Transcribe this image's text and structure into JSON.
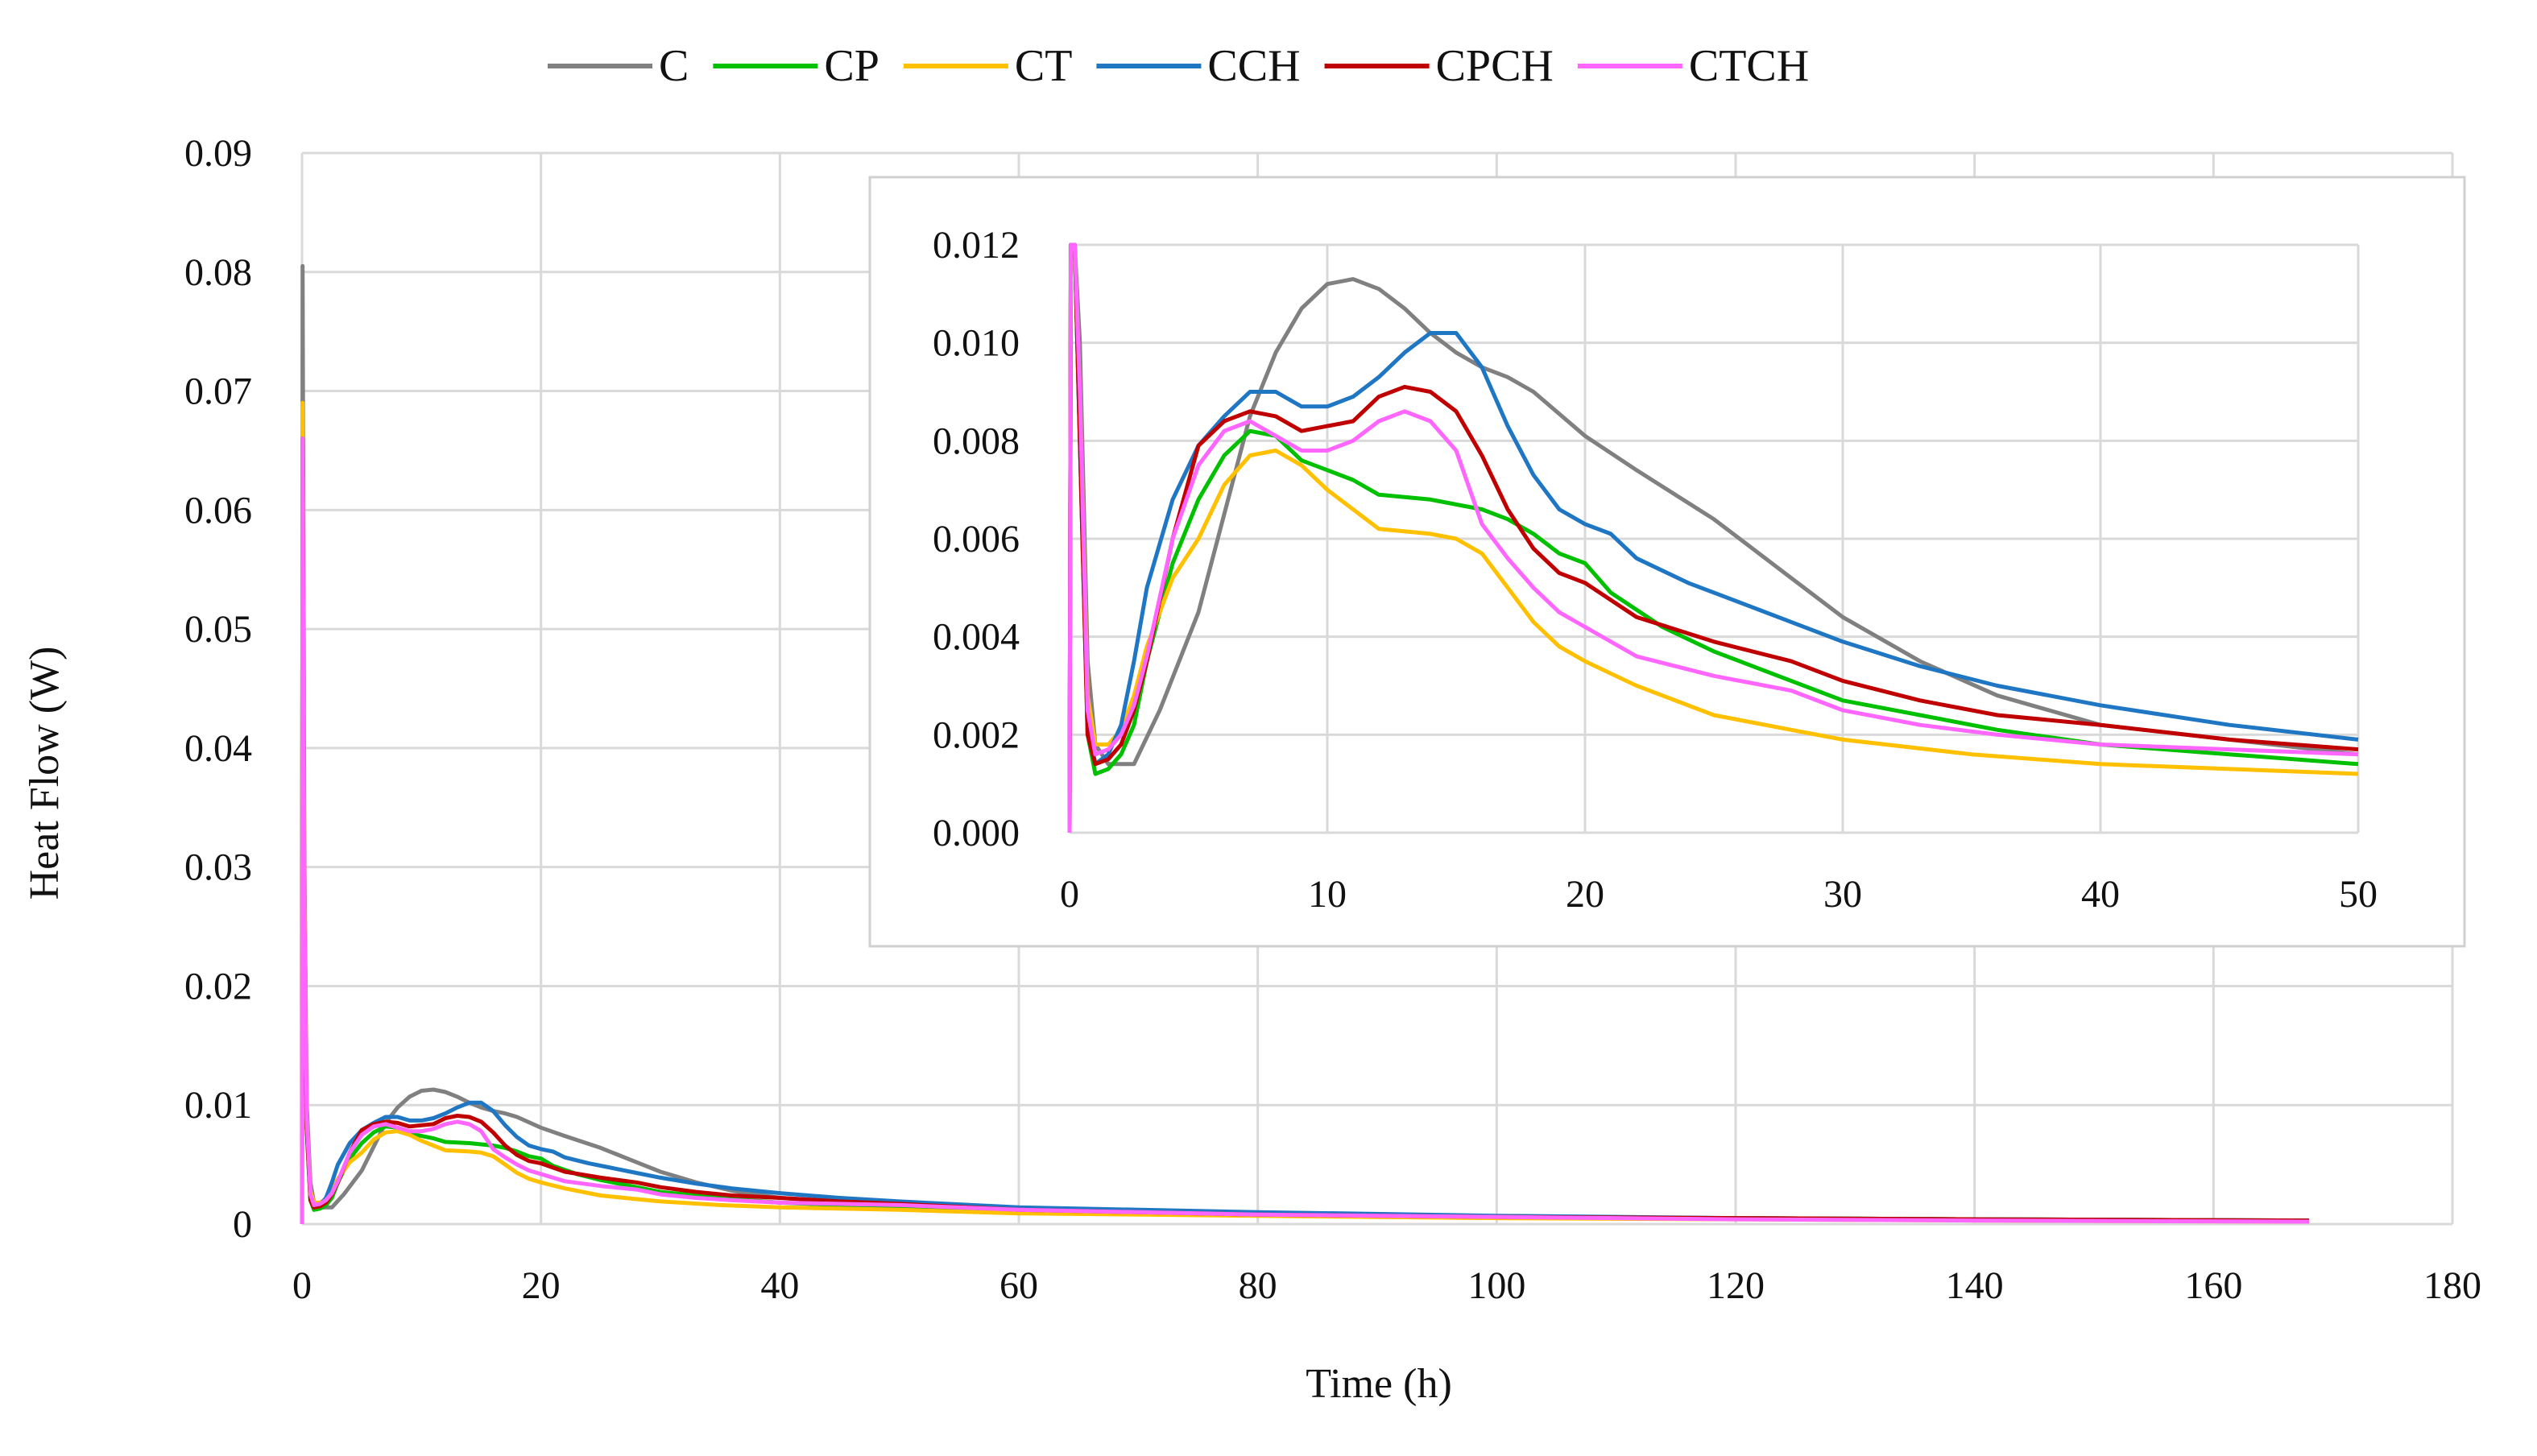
{
  "chart_data": {
    "type": "line",
    "xlabel": "Time (h)",
    "ylabel": "Heat Flow (W)",
    "legend_position": "top-center",
    "grid": true,
    "xlim": [
      0,
      180
    ],
    "ylim": [
      0,
      0.09
    ],
    "x_ticks": [
      0,
      20,
      40,
      60,
      80,
      100,
      120,
      140,
      160,
      180
    ],
    "y_ticks": [
      0,
      0.01,
      0.02,
      0.03,
      0.04,
      0.05,
      0.06,
      0.07,
      0.08,
      0.09
    ],
    "x_tick_labels": [
      "0",
      "20",
      "40",
      "60",
      "80",
      "100",
      "120",
      "140",
      "160",
      "180"
    ],
    "y_tick_labels": [
      "0",
      "0.01",
      "0.02",
      "0.03",
      "0.04",
      "0.05",
      "0.06",
      "0.07",
      "0.08",
      "0.09"
    ],
    "series": [
      {
        "name": "C",
        "color": "#808080",
        "points": [
          [
            0,
            0
          ],
          [
            0.05,
            0.0805
          ],
          [
            0.2,
            0.03
          ],
          [
            0.4,
            0.01
          ],
          [
            0.7,
            0.0035
          ],
          [
            1,
            0.0018
          ],
          [
            1.5,
            0.0014
          ],
          [
            2.5,
            0.0014
          ],
          [
            3.5,
            0.0025
          ],
          [
            5,
            0.0045
          ],
          [
            6,
            0.0065
          ],
          [
            7,
            0.0085
          ],
          [
            8,
            0.0098
          ],
          [
            9,
            0.0107
          ],
          [
            10,
            0.0112
          ],
          [
            11,
            0.0113
          ],
          [
            12,
            0.0111
          ],
          [
            13,
            0.0107
          ],
          [
            14,
            0.0102
          ],
          [
            15,
            0.0098
          ],
          [
            16,
            0.0095
          ],
          [
            17,
            0.0093
          ],
          [
            18,
            0.009
          ],
          [
            20,
            0.0081
          ],
          [
            22,
            0.0074
          ],
          [
            25,
            0.0064
          ],
          [
            28,
            0.0052
          ],
          [
            30,
            0.0044
          ],
          [
            33,
            0.0035
          ],
          [
            36,
            0.0028
          ],
          [
            40,
            0.0022
          ],
          [
            45,
            0.0019
          ],
          [
            50,
            0.0016
          ],
          [
            60,
            0.0013
          ],
          [
            70,
            0.001
          ],
          [
            80,
            0.0008
          ],
          [
            100,
            0.0006
          ],
          [
            120,
            0.0005
          ],
          [
            140,
            0.0004
          ],
          [
            168,
            0.0003
          ]
        ]
      },
      {
        "name": "CP",
        "color": "#00c000",
        "points": [
          [
            0,
            0
          ],
          [
            0.05,
            0.066
          ],
          [
            0.2,
            0.025
          ],
          [
            0.4,
            0.008
          ],
          [
            0.7,
            0.002
          ],
          [
            1,
            0.0012
          ],
          [
            1.5,
            0.0013
          ],
          [
            2,
            0.0016
          ],
          [
            2.5,
            0.0022
          ],
          [
            3,
            0.0035
          ],
          [
            4,
            0.0055
          ],
          [
            5,
            0.0068
          ],
          [
            6,
            0.0077
          ],
          [
            7,
            0.0082
          ],
          [
            8,
            0.0081
          ],
          [
            9,
            0.0076
          ],
          [
            10,
            0.0074
          ],
          [
            11,
            0.0072
          ],
          [
            12,
            0.0069
          ],
          [
            14,
            0.0068
          ],
          [
            16,
            0.0066
          ],
          [
            17,
            0.0064
          ],
          [
            18,
            0.0061
          ],
          [
            19,
            0.0057
          ],
          [
            20,
            0.0055
          ],
          [
            21,
            0.0049
          ],
          [
            23,
            0.0042
          ],
          [
            25,
            0.0037
          ],
          [
            27,
            0.0033
          ],
          [
            30,
            0.0027
          ],
          [
            33,
            0.0024
          ],
          [
            36,
            0.0021
          ],
          [
            40,
            0.0018
          ],
          [
            45,
            0.0016
          ],
          [
            50,
            0.0014
          ],
          [
            60,
            0.0011
          ],
          [
            80,
            0.0008
          ],
          [
            100,
            0.0006
          ],
          [
            120,
            0.0005
          ],
          [
            140,
            0.0004
          ],
          [
            168,
            0.0003
          ]
        ]
      },
      {
        "name": "CT",
        "color": "#ffc000",
        "points": [
          [
            0,
            0
          ],
          [
            0.05,
            0.069
          ],
          [
            0.2,
            0.028
          ],
          [
            0.4,
            0.009
          ],
          [
            0.7,
            0.0028
          ],
          [
            1,
            0.0018
          ],
          [
            1.5,
            0.0018
          ],
          [
            2,
            0.0021
          ],
          [
            2.5,
            0.0028
          ],
          [
            3,
            0.0038
          ],
          [
            4,
            0.0052
          ],
          [
            5,
            0.006
          ],
          [
            6,
            0.0071
          ],
          [
            7,
            0.0077
          ],
          [
            8,
            0.0078
          ],
          [
            9,
            0.0075
          ],
          [
            10,
            0.007
          ],
          [
            11,
            0.0066
          ],
          [
            12,
            0.0062
          ],
          [
            14,
            0.0061
          ],
          [
            15,
            0.006
          ],
          [
            16,
            0.0057
          ],
          [
            17,
            0.005
          ],
          [
            18,
            0.0043
          ],
          [
            19,
            0.0038
          ],
          [
            20,
            0.0035
          ],
          [
            22,
            0.003
          ],
          [
            25,
            0.0024
          ],
          [
            28,
            0.0021
          ],
          [
            30,
            0.0019
          ],
          [
            35,
            0.0016
          ],
          [
            40,
            0.0014
          ],
          [
            45,
            0.0013
          ],
          [
            50,
            0.0012
          ],
          [
            60,
            0.0009
          ],
          [
            80,
            0.0007
          ],
          [
            100,
            0.0005
          ],
          [
            120,
            0.0004
          ],
          [
            140,
            0.0003
          ],
          [
            168,
            0.0002
          ]
        ]
      },
      {
        "name": "CCH",
        "color": "#1f77c4",
        "points": [
          [
            0,
            0
          ],
          [
            0.05,
            0.066
          ],
          [
            0.2,
            0.025
          ],
          [
            0.4,
            0.008
          ],
          [
            0.7,
            0.0022
          ],
          [
            1,
            0.0014
          ],
          [
            1.5,
            0.0016
          ],
          [
            2,
            0.0022
          ],
          [
            2.5,
            0.0035
          ],
          [
            3,
            0.005
          ],
          [
            4,
            0.0068
          ],
          [
            5,
            0.0079
          ],
          [
            6,
            0.0085
          ],
          [
            7,
            0.009
          ],
          [
            8,
            0.009
          ],
          [
            9,
            0.0087
          ],
          [
            10,
            0.0087
          ],
          [
            11,
            0.0089
          ],
          [
            12,
            0.0093
          ],
          [
            13,
            0.0098
          ],
          [
            14,
            0.0102
          ],
          [
            15,
            0.0102
          ],
          [
            16,
            0.0095
          ],
          [
            17,
            0.0083
          ],
          [
            18,
            0.0073
          ],
          [
            19,
            0.0066
          ],
          [
            20,
            0.0063
          ],
          [
            21,
            0.0061
          ],
          [
            22,
            0.0056
          ],
          [
            24,
            0.0051
          ],
          [
            26,
            0.0047
          ],
          [
            28,
            0.0043
          ],
          [
            30,
            0.0039
          ],
          [
            33,
            0.0034
          ],
          [
            36,
            0.003
          ],
          [
            40,
            0.0026
          ],
          [
            45,
            0.0022
          ],
          [
            50,
            0.0019
          ],
          [
            60,
            0.0014
          ],
          [
            80,
            0.001
          ],
          [
            100,
            0.0007
          ],
          [
            120,
            0.0005
          ],
          [
            140,
            0.0004
          ],
          [
            168,
            0.0003
          ]
        ]
      },
      {
        "name": "CPCH",
        "color": "#c00000",
        "points": [
          [
            0,
            0
          ],
          [
            0.05,
            0.066
          ],
          [
            0.2,
            0.025
          ],
          [
            0.4,
            0.008
          ],
          [
            0.7,
            0.002
          ],
          [
            1,
            0.0014
          ],
          [
            1.5,
            0.0015
          ],
          [
            2,
            0.0018
          ],
          [
            2.5,
            0.0025
          ],
          [
            3,
            0.0035
          ],
          [
            4,
            0.006
          ],
          [
            5,
            0.0079
          ],
          [
            6,
            0.0084
          ],
          [
            7,
            0.0086
          ],
          [
            8,
            0.0085
          ],
          [
            9,
            0.0082
          ],
          [
            10,
            0.0083
          ],
          [
            11,
            0.0084
          ],
          [
            12,
            0.0089
          ],
          [
            13,
            0.0091
          ],
          [
            14,
            0.009
          ],
          [
            15,
            0.0086
          ],
          [
            16,
            0.0077
          ],
          [
            17,
            0.0066
          ],
          [
            18,
            0.0058
          ],
          [
            19,
            0.0053
          ],
          [
            20,
            0.0051
          ],
          [
            22,
            0.0044
          ],
          [
            25,
            0.0039
          ],
          [
            28,
            0.0035
          ],
          [
            30,
            0.0031
          ],
          [
            33,
            0.0027
          ],
          [
            36,
            0.0024
          ],
          [
            40,
            0.0022
          ],
          [
            45,
            0.0019
          ],
          [
            50,
            0.0017
          ],
          [
            60,
            0.0012
          ],
          [
            80,
            0.0008
          ],
          [
            100,
            0.0006
          ],
          [
            120,
            0.0005
          ],
          [
            140,
            0.0004
          ],
          [
            168,
            0.0003
          ]
        ]
      },
      {
        "name": "CTCH",
        "color": "#ff66ff",
        "points": [
          [
            0,
            0
          ],
          [
            0.05,
            0.066
          ],
          [
            0.2,
            0.026
          ],
          [
            0.4,
            0.009
          ],
          [
            0.7,
            0.0025
          ],
          [
            1,
            0.0016
          ],
          [
            1.5,
            0.0017
          ],
          [
            2,
            0.002
          ],
          [
            2.5,
            0.0026
          ],
          [
            3,
            0.0036
          ],
          [
            4,
            0.006
          ],
          [
            5,
            0.0075
          ],
          [
            6,
            0.0082
          ],
          [
            7,
            0.0084
          ],
          [
            8,
            0.0081
          ],
          [
            9,
            0.0078
          ],
          [
            10,
            0.0078
          ],
          [
            11,
            0.008
          ],
          [
            12,
            0.0084
          ],
          [
            13,
            0.0086
          ],
          [
            14,
            0.0084
          ],
          [
            15,
            0.0078
          ],
          [
            16,
            0.0063
          ],
          [
            17,
            0.0056
          ],
          [
            18,
            0.005
          ],
          [
            19,
            0.0045
          ],
          [
            20,
            0.0042
          ],
          [
            22,
            0.0036
          ],
          [
            25,
            0.0032
          ],
          [
            28,
            0.0029
          ],
          [
            30,
            0.0025
          ],
          [
            33,
            0.0022
          ],
          [
            36,
            0.002
          ],
          [
            40,
            0.0018
          ],
          [
            45,
            0.0017
          ],
          [
            50,
            0.0016
          ],
          [
            60,
            0.0012
          ],
          [
            80,
            0.0008
          ],
          [
            100,
            0.0006
          ],
          [
            120,
            0.0004
          ],
          [
            140,
            0.0003
          ],
          [
            168,
            0.0002
          ]
        ]
      }
    ],
    "inset": {
      "xlim": [
        0,
        50
      ],
      "ylim": [
        0,
        0.012
      ],
      "x_ticks": [
        0,
        10,
        20,
        30,
        40,
        50
      ],
      "y_ticks": [
        0,
        0.002,
        0.004,
        0.006,
        0.008,
        0.01,
        0.012
      ],
      "x_tick_labels": [
        "0",
        "10",
        "20",
        "30",
        "40",
        "50"
      ],
      "y_tick_labels": [
        "0.000",
        "0.002",
        "0.004",
        "0.006",
        "0.008",
        "0.010",
        "0.012"
      ]
    }
  }
}
